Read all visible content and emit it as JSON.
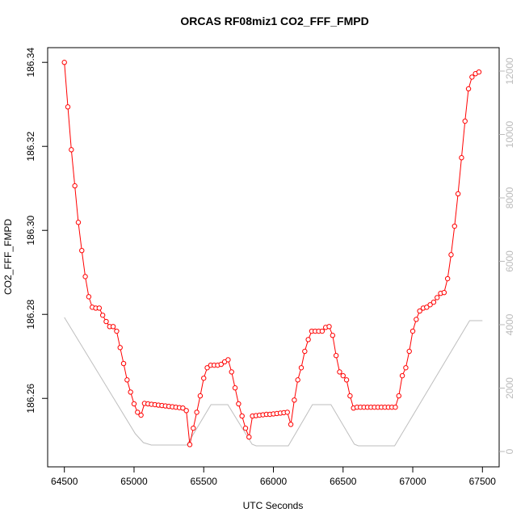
{
  "chart_data": {
    "type": "line",
    "title": "ORCAS RF08miz1 CO2_FFF_FMPD",
    "x_label": "UTC Seconds",
    "y_label": "CO2_FFF_FMPD",
    "xlim": [
      64380,
      67620
    ],
    "xticks": [
      64500,
      65000,
      65500,
      66000,
      66500,
      67000,
      67500
    ],
    "ylim": [
      186.2437,
      186.3435
    ],
    "yticks": [
      186.26,
      186.28,
      {
        "value": 186.3,
        "label": "186.30"
      },
      186.32,
      186.34
    ],
    "y2lim": [
      -484,
      12739
    ],
    "y2ticks": [
      0,
      2000,
      4000,
      6000,
      8000,
      10000,
      12000
    ],
    "series": [
      {
        "color": "#ff0000",
        "marker": "circle",
        "x": [
          64500,
          64525,
          64550,
          64575,
          64600,
          64625,
          64650,
          64675,
          64700,
          64725,
          64750,
          64775,
          64800,
          64825,
          64850,
          64875,
          64900,
          64925,
          64950,
          64975,
          65000,
          65025,
          65050,
          65075,
          65100,
          65125,
          65150,
          65175,
          65200,
          65225,
          65250,
          65275,
          65300,
          65325,
          65350,
          65375,
          65400,
          65425,
          65450,
          65475,
          65500,
          65525,
          65550,
          65575,
          65600,
          65625,
          65650,
          65675,
          65700,
          65725,
          65750,
          65775,
          65800,
          65825,
          65850,
          65875,
          65900,
          65925,
          65950,
          65975,
          66000,
          66025,
          66050,
          66075,
          66100,
          66125,
          66150,
          66175,
          66200,
          66225,
          66250,
          66275,
          66300,
          66325,
          66350,
          66375,
          66400,
          66425,
          66450,
          66475,
          66500,
          66525,
          66550,
          66575,
          66600,
          66625,
          66650,
          66675,
          66700,
          66725,
          66750,
          66775,
          66800,
          66825,
          66850,
          66875,
          66900,
          66925,
          66950,
          66975,
          67000,
          67025,
          67050,
          67075,
          67100,
          67125,
          67150,
          67175,
          67200,
          67225,
          67250,
          67275,
          67300,
          67325,
          67350,
          67375,
          67400,
          67425,
          67450,
          67475
        ],
        "values": [
          186.34,
          186.3294,
          186.3192,
          186.3106,
          186.3019,
          186.2952,
          186.289,
          186.2842,
          186.2817,
          186.2815,
          186.2815,
          186.2798,
          186.2783,
          186.2771,
          186.2771,
          186.276,
          186.2721,
          186.2683,
          186.2644,
          186.2615,
          186.2587,
          186.2567,
          186.256,
          186.2588,
          186.2587,
          186.2586,
          186.2585,
          186.2584,
          186.2583,
          186.2582,
          186.2581,
          186.258,
          186.2579,
          186.2578,
          186.2577,
          186.2571,
          186.249,
          186.2529,
          186.2567,
          186.2606,
          186.2648,
          186.2673,
          186.2679,
          186.2679,
          186.2679,
          186.2681,
          186.2687,
          186.2692,
          186.2663,
          186.2625,
          186.2587,
          186.2558,
          186.2529,
          186.2508,
          186.2558,
          186.2559,
          186.256,
          186.2561,
          186.2562,
          186.2562,
          186.2563,
          186.2564,
          186.2565,
          186.2566,
          186.2567,
          186.2538,
          186.2596,
          186.2644,
          186.2673,
          186.2712,
          186.274,
          186.276,
          186.276,
          186.276,
          186.276,
          186.2769,
          186.2771,
          186.275,
          186.2702,
          186.2663,
          186.2654,
          186.2644,
          186.2606,
          186.2577,
          186.2579,
          186.2579,
          186.2579,
          186.2579,
          186.2579,
          186.2579,
          186.2579,
          186.2579,
          186.2579,
          186.2579,
          186.2579,
          186.2579,
          186.2606,
          186.2654,
          186.2673,
          186.2712,
          186.276,
          186.2788,
          186.2808,
          186.2815,
          186.2817,
          186.2823,
          186.2829,
          186.284,
          186.285,
          186.2852,
          186.2885,
          186.2942,
          186.301,
          186.3087,
          186.3173,
          186.326,
          186.3337,
          186.3365,
          186.3373,
          186.3377
        ]
      },
      {
        "color": "#bebebe",
        "axis": "y2",
        "x": [
          64500,
          65009,
          65067,
          65124,
          65379,
          65552,
          65673,
          65847,
          65876,
          66107,
          66280,
          66413,
          66581,
          66610,
          66870,
          67408,
          67500
        ],
        "values": [
          4229,
          560,
          280,
          204,
          204,
          1478,
          1478,
          230,
          178,
          178,
          1478,
          1478,
          230,
          178,
          178,
          4127,
          4127
        ]
      }
    ]
  }
}
